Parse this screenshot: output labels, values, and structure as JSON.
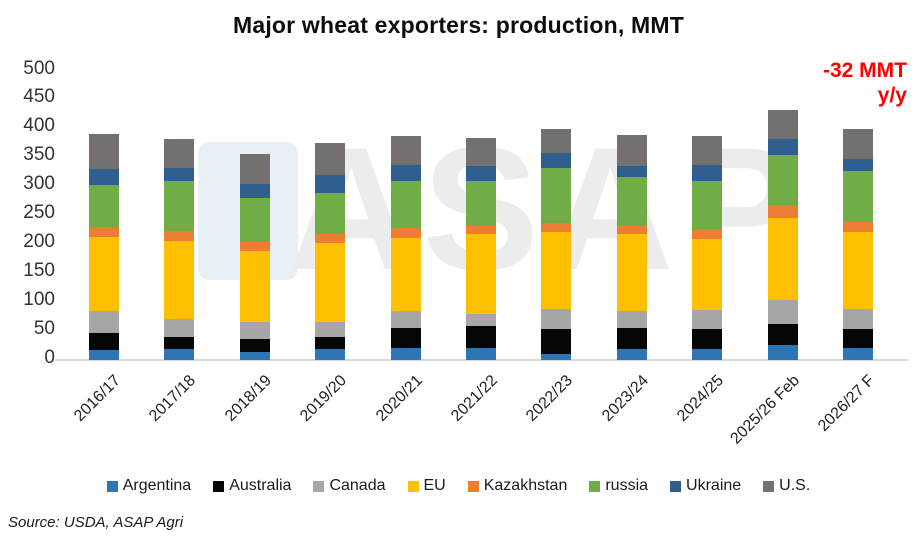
{
  "title": "Major wheat exporters: production, MMT",
  "annotation": {
    "line1": "-32 MMT",
    "line2": "y/y",
    "color": "#FF0000"
  },
  "source_note": "Source: USDA, ASAP Agri",
  "watermark": {
    "text": "ASAP"
  },
  "chart_data": {
    "type": "bar",
    "stacked": true,
    "title": "Major wheat exporters: production, MMT",
    "units": "MMT",
    "xlabel": "",
    "ylabel": "",
    "grid": false,
    "legend_position": "bottom",
    "ylim": [
      0,
      500
    ],
    "y_ticks": [
      0,
      50,
      100,
      150,
      200,
      250,
      300,
      350,
      400,
      450,
      500
    ],
    "categories": [
      "2016/17",
      "2017/18",
      "2018/19",
      "2019/20",
      "2020/21",
      "2021/22",
      "2022/23",
      "2023/24",
      "2024/25",
      "2025/26 Feb",
      "2026/27 F"
    ],
    "series": [
      {
        "name": "Argentina",
        "color": "#2E75B6",
        "values": [
          18,
          19,
          13,
          19,
          21,
          20,
          10,
          19,
          19,
          26,
          20
        ]
      },
      {
        "name": "Australia",
        "color": "#050505",
        "values": [
          28,
          20,
          24,
          20,
          34,
          39,
          43,
          36,
          35,
          37,
          33
        ]
      },
      {
        "name": "Canada",
        "color": "#A6A6A6",
        "values": [
          38,
          32,
          29,
          26,
          29,
          21,
          35,
          29,
          32,
          40,
          35
        ]
      },
      {
        "name": "EU",
        "color": "#FFC000",
        "values": [
          128,
          134,
          123,
          137,
          127,
          137,
          133,
          134,
          123,
          143,
          133
        ]
      },
      {
        "name": "Kazakhstan",
        "color": "#ED7D31",
        "values": [
          17,
          17,
          15,
          16,
          17,
          15,
          15,
          14,
          18,
          21,
          18
        ]
      },
      {
        "name": "russia",
        "color": "#70AD47",
        "values": [
          74,
          88,
          76,
          71,
          82,
          77,
          95,
          84,
          83,
          87,
          87
        ]
      },
      {
        "name": "Ukraine",
        "color": "#2E5F8F",
        "values": [
          27,
          21,
          24,
          30,
          27,
          26,
          26,
          19,
          26,
          28,
          21
        ]
      },
      {
        "name": "U.S.",
        "color": "#757070",
        "values": [
          60,
          51,
          52,
          56,
          50,
          49,
          42,
          53,
          51,
          49,
          52
        ]
      }
    ],
    "totals": [
      390,
      382,
      356,
      375,
      387,
      384,
      399,
      388,
      387,
      431,
      399
    ]
  }
}
